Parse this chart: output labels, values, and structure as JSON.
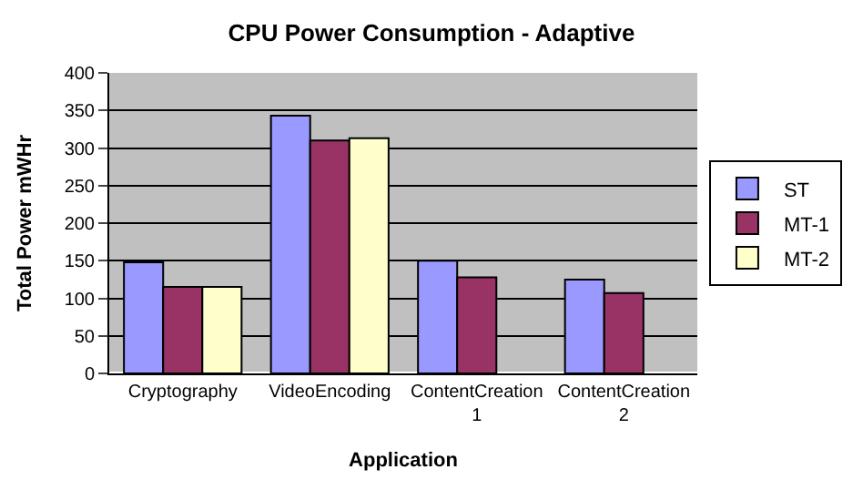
{
  "chart_data": {
    "type": "bar",
    "title": "CPU Power Consumption - Adaptive",
    "xlabel": "Application",
    "ylabel": "Total Power mWHr",
    "categories": [
      "Cryptography",
      "VideoEncoding",
      "ContentCreation 1",
      "ContentCreation 2"
    ],
    "series": [
      {
        "name": "ST",
        "color": "#9999ff",
        "values": [
          148,
          343,
          150,
          125
        ]
      },
      {
        "name": "MT-1",
        "color": "#993366",
        "values": [
          115,
          310,
          128,
          107
        ]
      },
      {
        "name": "MT-2",
        "color": "#ffffcc",
        "values": [
          115,
          313,
          null,
          null
        ]
      }
    ],
    "ylim": [
      0,
      400
    ],
    "yticks": [
      0,
      50,
      100,
      150,
      200,
      250,
      300,
      350,
      400
    ],
    "grid": "y",
    "legend": "right"
  }
}
